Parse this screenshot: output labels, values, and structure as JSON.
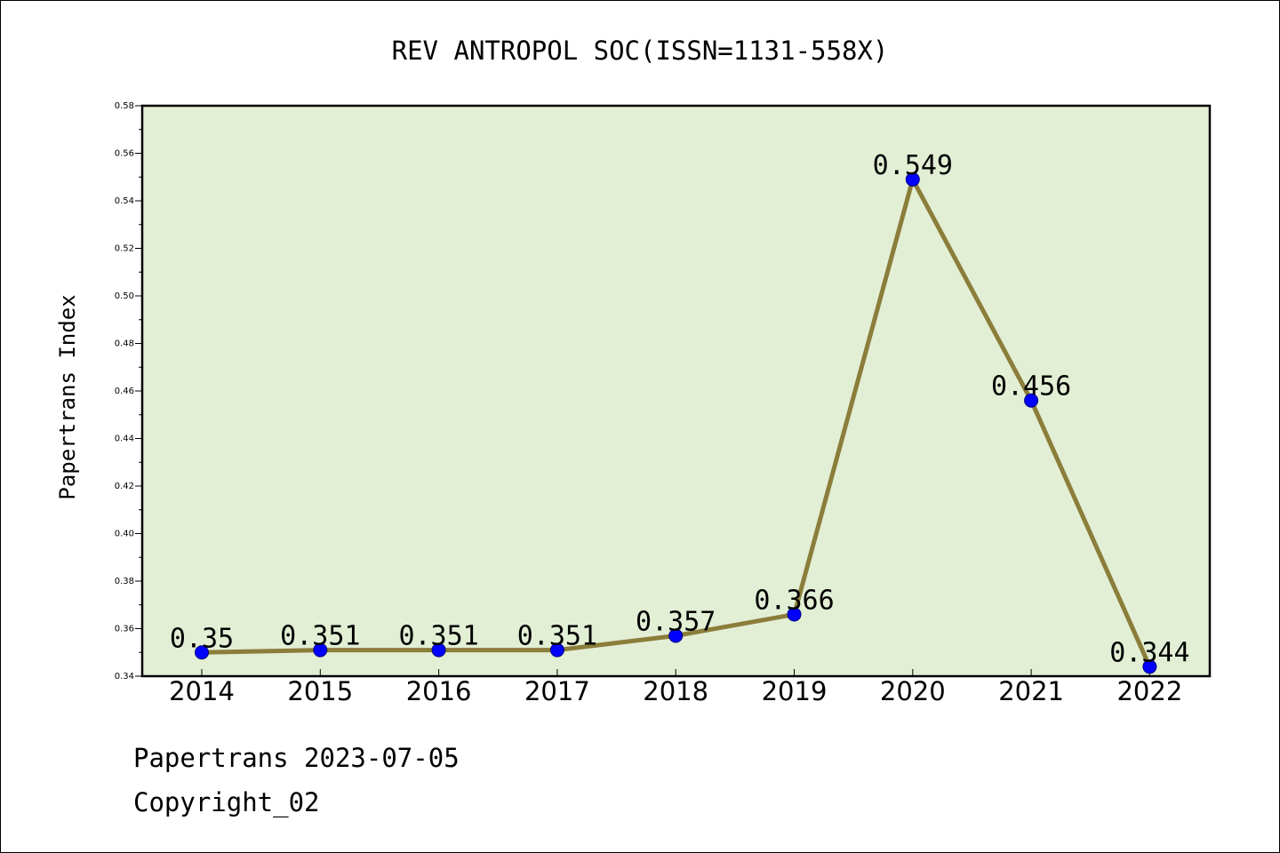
{
  "footer": {
    "source_line": "Papertrans 2023-07-05",
    "copyright_line": "Copyright_02"
  },
  "colors": {
    "plot_background": "#e2efd5",
    "line": "#8b7d3a",
    "marker": "#0000ff"
  },
  "chart_data": {
    "type": "line",
    "title": "REV ANTROPOL SOC(ISSN=1131-558X)",
    "ylabel": "Papertrans Index",
    "xlabel": "",
    "categories": [
      "2014",
      "2015",
      "2016",
      "2017",
      "2018",
      "2019",
      "2020",
      "2021",
      "2022"
    ],
    "series": [
      {
        "values": [
          0.35,
          0.351,
          0.351,
          0.351,
          0.357,
          0.366,
          0.549,
          0.456,
          0.344
        ],
        "labels": [
          "0.35",
          "0.351",
          "0.351",
          "0.351",
          "0.357",
          "0.366",
          "0.549",
          "0.456",
          "0.344"
        ]
      }
    ],
    "ylim": [
      0.34,
      0.58
    ],
    "yticks": [
      0.34,
      0.36,
      0.38,
      0.4,
      0.42,
      0.44,
      0.46,
      0.48,
      0.5,
      0.52,
      0.54,
      0.56,
      0.58
    ],
    "ytick_labels": [
      "0.34",
      "0.36",
      "0.38",
      "0.40",
      "0.42",
      "0.44",
      "0.46",
      "0.48",
      "0.50",
      "0.52",
      "0.54",
      "0.56",
      "0.58"
    ],
    "grid": false,
    "legend": "none"
  }
}
